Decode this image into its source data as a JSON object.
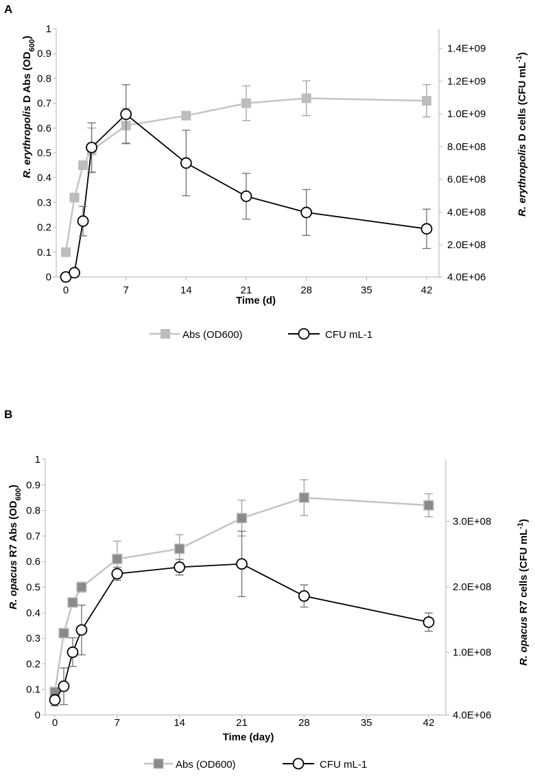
{
  "colors": {
    "abs_line": "#c4c4c4",
    "abs_marker_a": "#bdbdbd",
    "abs_marker_b": "#8a8a8a",
    "abs_marker_b_border": "#c4c4c4",
    "cfu_line": "#000000",
    "axis": "#bfbfbf",
    "error_abs": "#9e9e9e",
    "error_cfu": "#6e6e6e"
  },
  "chart_data": [
    {
      "type": "line",
      "panel_label": "A",
      "xlabel": "Time (d)",
      "ylabel_left": {
        "italic": "R. erythropolis",
        "normal": " D Abs (OD",
        "sub": "600",
        "close": ")"
      },
      "ylabel_right": {
        "italic": "R. erythropolis",
        "normal": " D cells (CFU mL",
        "sup": "-1",
        "close": ")"
      },
      "x_ticks": [
        0,
        7,
        14,
        21,
        28,
        35,
        42
      ],
      "x_tick_labels": [
        "0",
        "7",
        "14",
        "21",
        "28",
        "35",
        "42"
      ],
      "y_left_ticks": [
        0,
        0.1,
        0.2,
        0.3,
        0.4,
        0.5,
        0.6,
        0.7,
        0.8,
        0.9,
        1
      ],
      "y_left_tick_labels": [
        "0",
        "0.1",
        "0.2",
        "0.3",
        "0.4",
        "0.5",
        "0.6",
        "0.7",
        "0.8",
        "0.9",
        "1"
      ],
      "ylim_left": [
        0,
        1
      ],
      "y_right_ticks": [
        4000000,
        200000000,
        400000000,
        600000000,
        800000000,
        1000000000,
        1200000000,
        1400000000
      ],
      "y_right_tick_labels": [
        "4.0E+06",
        "2.0E+08",
        "4.0E+08",
        "6.0E+08",
        "8.0E+08",
        "1.0E+09",
        "1.2E+09",
        "1.4E+09"
      ],
      "ylim_right": [
        4000000,
        1520000000
      ],
      "series": [
        {
          "name": "Abs (OD600)",
          "axis": "left",
          "marker": "square",
          "x": [
            0,
            1,
            2,
            3,
            7,
            14,
            21,
            28,
            42
          ],
          "values": [
            0.1,
            0.32,
            0.45,
            0.51,
            0.61,
            0.65,
            0.7,
            0.72,
            0.71
          ],
          "error": [
            0,
            0,
            0,
            0.09,
            0.07,
            0,
            0.07,
            0.07,
            0.065
          ]
        },
        {
          "name": "CFU mL-1",
          "axis": "right",
          "marker": "circle",
          "x": [
            0,
            1,
            2,
            3,
            7,
            14,
            21,
            28,
            42
          ],
          "values": [
            4000000,
            30000000,
            345000000,
            795000000,
            998000000,
            700000000,
            497000000,
            398000000,
            298000000
          ],
          "error": [
            0,
            0,
            90000000,
            150000000,
            180000000,
            200000000,
            140000000,
            140000000,
            120000000
          ]
        }
      ]
    },
    {
      "type": "line",
      "panel_label": "B",
      "xlabel": "Time (day)",
      "ylabel_left": {
        "italic": "R. opacus",
        "normal": " R7 Abs (OD",
        "sub": "600",
        "close": ")"
      },
      "ylabel_right": {
        "italic": "R. opacus",
        "normal": " R7 cells (CFU mL",
        "sup": "-1",
        "close": ")"
      },
      "x_ticks": [
        0,
        7,
        14,
        21,
        28,
        35,
        42
      ],
      "x_tick_labels": [
        "0",
        "7",
        "14",
        "21",
        "28",
        "35",
        "42"
      ],
      "y_left_ticks": [
        0,
        0.1,
        0.2,
        0.3,
        0.4,
        0.5,
        0.6,
        0.7,
        0.8,
        0.9,
        1
      ],
      "y_left_tick_labels": [
        "0",
        "0.1",
        "0.2",
        "0.3",
        "0.4",
        "0.5",
        "0.6",
        "0.7",
        "0.8",
        "0.9",
        "1"
      ],
      "ylim_left": [
        0,
        1
      ],
      "y_right_ticks": [
        4000000,
        100000000,
        200000000,
        300000000
      ],
      "y_right_tick_labels": [
        "4.0E+06",
        "1.0E+08",
        "2.0E+08",
        "3.0E+08"
      ],
      "ylim_right": [
        4000000,
        395000000
      ],
      "series": [
        {
          "name": "Abs (OD600)",
          "axis": "left",
          "marker": "square",
          "x": [
            0,
            1,
            2,
            3,
            7,
            14,
            21,
            28,
            42
          ],
          "values": [
            0.09,
            0.32,
            0.44,
            0.5,
            0.61,
            0.65,
            0.77,
            0.85,
            0.82
          ],
          "error": [
            0,
            0,
            0,
            0.02,
            0.07,
            0.055,
            0.07,
            0.07,
            0.045
          ]
        },
        {
          "name": "CFU mL-1",
          "axis": "right",
          "marker": "circle",
          "x": [
            0,
            1,
            2,
            3,
            7,
            14,
            21,
            28,
            42
          ],
          "values": [
            27000000,
            48000000,
            100000000,
            134000000,
            220000000,
            230000000,
            235000000,
            186000000,
            146000000
          ],
          "error": [
            9000000,
            28000000,
            22000000,
            38000000,
            10000000,
            12000000,
            50000000,
            17000000,
            14000000
          ]
        }
      ]
    }
  ]
}
